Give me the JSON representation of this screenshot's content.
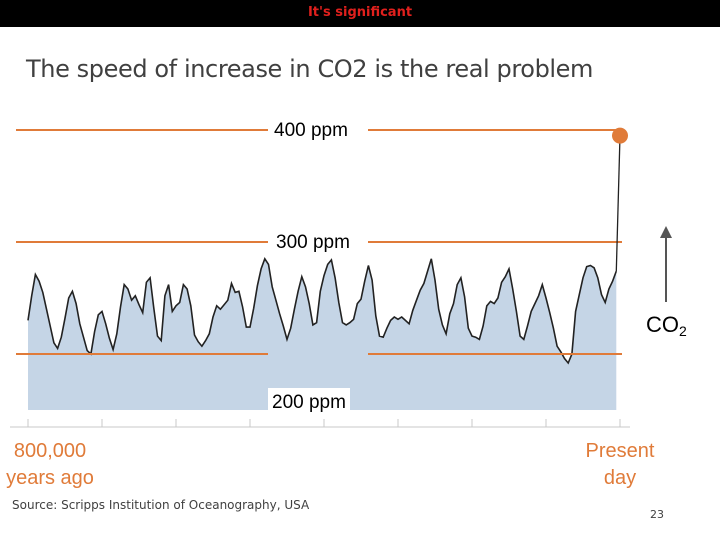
{
  "section_title": "It's significant",
  "slide_title": "The speed of increase in CO2 is the real problem",
  "chart_data": {
    "type": "area",
    "title": "",
    "xlabel": "",
    "ylabel": "",
    "x_start_label_line1": "800,000",
    "x_start_label_line2": "years ago",
    "x_end_label_line1": "Present",
    "x_end_label_line2": "day",
    "axis_label": "CO",
    "axis_label_subscript": "2",
    "reference_lines": [
      {
        "value": 400,
        "label": "400 ppm"
      },
      {
        "value": 300,
        "label": "300 ppm"
      },
      {
        "value": 200,
        "label": "200 ppm"
      }
    ],
    "ylim": [
      180,
      410
    ],
    "xlim": [
      800000,
      0
    ],
    "x_unit": "years ago",
    "x": [
      800000,
      795000,
      790000,
      785000,
      780000,
      775000,
      770000,
      765000,
      760000,
      755000,
      750000,
      745000,
      740000,
      735000,
      730000,
      725000,
      720000,
      715000,
      710000,
      705000,
      700000,
      695000,
      690000,
      685000,
      680000,
      675000,
      670000,
      665000,
      660000,
      655000,
      650000,
      645000,
      640000,
      635000,
      630000,
      625000,
      620000,
      615000,
      610000,
      605000,
      600000,
      595000,
      590000,
      585000,
      580000,
      575000,
      570000,
      565000,
      560000,
      555000,
      550000,
      545000,
      540000,
      535000,
      530000,
      525000,
      520000,
      515000,
      510000,
      505000,
      500000,
      495000,
      490000,
      485000,
      480000,
      475000,
      470000,
      465000,
      460000,
      455000,
      450000,
      445000,
      440000,
      435000,
      430000,
      425000,
      420000,
      415000,
      410000,
      405000,
      400000,
      395000,
      390000,
      385000,
      380000,
      375000,
      370000,
      365000,
      360000,
      355000,
      350000,
      345000,
      340000,
      335000,
      330000,
      325000,
      320000,
      315000,
      310000,
      305000,
      300000,
      295000,
      290000,
      285000,
      280000,
      275000,
      270000,
      265000,
      260000,
      255000,
      250000,
      245000,
      240000,
      235000,
      230000,
      225000,
      220000,
      215000,
      210000,
      205000,
      200000,
      195000,
      190000,
      185000,
      180000,
      175000,
      170000,
      165000,
      160000,
      155000,
      150000,
      145000,
      140000,
      135000,
      130000,
      125000,
      120000,
      115000,
      110000,
      105000,
      100000,
      95000,
      90000,
      85000,
      80000,
      75000,
      70000,
      65000,
      60000,
      55000,
      50000,
      45000,
      40000,
      35000,
      30000,
      25000,
      20000,
      15000,
      10000,
      5000,
      0
    ],
    "co2_ppm": [
      230,
      252,
      271,
      265,
      255,
      240,
      225,
      210,
      205,
      215,
      232,
      250,
      256,
      245,
      227,
      215,
      203,
      200,
      220,
      235,
      238,
      227,
      214,
      204,
      218,
      242,
      262,
      258,
      248,
      252,
      244,
      237,
      264,
      268,
      241,
      216,
      212,
      252,
      262,
      238,
      243,
      246,
      262,
      258,
      243,
      217,
      211,
      207,
      212,
      218,
      233,
      243,
      240,
      244,
      248,
      263,
      255,
      256,
      242,
      224,
      224,
      241,
      261,
      276,
      285,
      280,
      260,
      248,
      236,
      225,
      213,
      223,
      240,
      256,
      269,
      260,
      245,
      226,
      228,
      256,
      270,
      280,
      284,
      268,
      246,
      228,
      226,
      228,
      231,
      245,
      249,
      265,
      279,
      266,
      234,
      216,
      215,
      223,
      230,
      233,
      231,
      233,
      230,
      227,
      239,
      248,
      257,
      263,
      274,
      285,
      266,
      240,
      226,
      218,
      236,
      245,
      262,
      268,
      251,
      223,
      216,
      215,
      213,
      225,
      243,
      247,
      245,
      250,
      264,
      269,
      276,
      258,
      238,
      216,
      213,
      225,
      238,
      245,
      252,
      262,
      250,
      237,
      223,
      207,
      202,
      196,
      192,
      200,
      238,
      253,
      268,
      278,
      279,
      277,
      268,
      253,
      246,
      258,
      265,
      274,
      395
    ],
    "background_color": "#c5d5e6",
    "line_color": "#222222",
    "reference_line_color": "#e07b39",
    "marker_color": "#e07b39",
    "arrow_color": "#555555"
  },
  "source_text": "Source: Scripps Institution of Oceanography, USA",
  "page_number": "23"
}
